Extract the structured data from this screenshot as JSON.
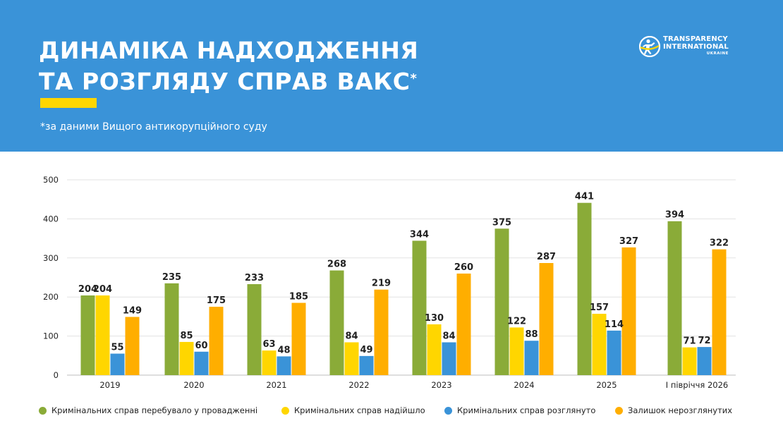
{
  "header": {
    "title_line1": "ДИНАМІКА НАДХОДЖЕННЯ",
    "title_line2": "ТА РОЗГЛЯДУ СПРАВ ВАКС",
    "title_mark": "*",
    "subtitle": "*за даними Вищого антикорупційного суду",
    "background_color": "#3a93d8",
    "accent_color": "#ffd600"
  },
  "logo": {
    "line1": "TRANSPARENCY",
    "line2": "INTERNATIONAL",
    "line3": "UKRAINE",
    "icon": "transparency-international-globe-icon"
  },
  "chart_data": {
    "type": "bar",
    "categories": [
      "2019",
      "2020",
      "2021",
      "2022",
      "2023",
      "2024",
      "2025",
      "І півріччя 2026"
    ],
    "ylim": [
      0,
      500
    ],
    "yticks": [
      0,
      100,
      200,
      300,
      400,
      500
    ],
    "grid": true,
    "legend_position": "bottom",
    "series": [
      {
        "name": "Кримінальних справ перебувало у провадженні",
        "color": "#8aab38",
        "values": [
          204,
          235,
          233,
          268,
          344,
          375,
          441,
          394
        ]
      },
      {
        "name": "Кримінальних справ надійшло",
        "color": "#ffd600",
        "values": [
          204,
          85,
          63,
          84,
          130,
          122,
          157,
          71
        ]
      },
      {
        "name": "Кримінальних справ розглянуто",
        "color": "#3a93d8",
        "values": [
          55,
          60,
          48,
          49,
          84,
          88,
          114,
          72
        ]
      },
      {
        "name": "Залишок нерозглянутих",
        "color": "#ffae00",
        "values": [
          149,
          175,
          185,
          219,
          260,
          287,
          327,
          322
        ]
      }
    ]
  }
}
